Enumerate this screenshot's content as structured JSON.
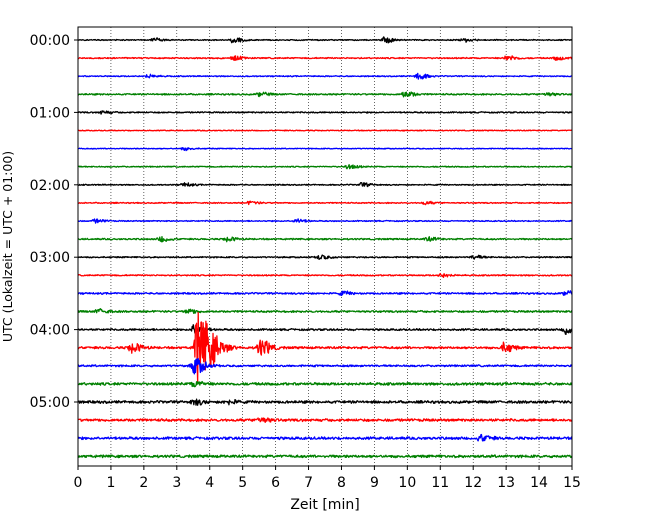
{
  "chart_data": {
    "type": "line",
    "title": "",
    "xlabel": "Zeit  [min]",
    "ylabel": "UTC (Lokalzeit = UTC + 01:00)",
    "xlim": [
      0,
      15
    ],
    "x_ticks": [
      0,
      1,
      2,
      3,
      4,
      5,
      6,
      7,
      8,
      9,
      10,
      11,
      12,
      13,
      14,
      15
    ],
    "x_tick_labels": [
      "0",
      "1",
      "2",
      "3",
      "4",
      "5",
      "6",
      "7",
      "8",
      "9",
      "10",
      "11",
      "12",
      "13",
      "14",
      "15"
    ],
    "y_tick_labels": [
      {
        "label": "00:00",
        "trace_index": 0
      },
      {
        "label": "01:00",
        "trace_index": 4
      },
      {
        "label": "02:00",
        "trace_index": 8
      },
      {
        "label": "03:00",
        "trace_index": 12
      },
      {
        "label": "04:00",
        "trace_index": 16
      },
      {
        "label": "05:00",
        "trace_index": 20
      }
    ],
    "grid": "vertical dotted at each minute",
    "color_cycle": [
      "#000000",
      "#ff0000",
      "#0000ff",
      "#008000"
    ],
    "trace_count": 24,
    "trace_interval_min": 15,
    "traces": [
      {
        "start": "00:00",
        "color": "#000000",
        "amplitude": 0.06,
        "events": [
          {
            "t": 2.3,
            "amp": 0.2
          },
          {
            "t": 4.7,
            "amp": 0.28
          },
          {
            "t": 9.3,
            "amp": 0.3
          },
          {
            "t": 11.7,
            "amp": 0.22
          }
        ]
      },
      {
        "start": "00:15",
        "color": "#ff0000",
        "amplitude": 0.07,
        "events": [
          {
            "t": 4.7,
            "amp": 0.22
          },
          {
            "t": 13.0,
            "amp": 0.28
          },
          {
            "t": 14.5,
            "amp": 0.2
          }
        ]
      },
      {
        "start": "00:30",
        "color": "#0000ff",
        "amplitude": 0.06,
        "events": [
          {
            "t": 2.1,
            "amp": 0.18
          },
          {
            "t": 10.3,
            "amp": 0.34
          }
        ]
      },
      {
        "start": "00:45",
        "color": "#008000",
        "amplitude": 0.08,
        "events": [
          {
            "t": 5.5,
            "amp": 0.2
          },
          {
            "t": 9.9,
            "amp": 0.34
          },
          {
            "t": 14.2,
            "amp": 0.2
          }
        ]
      },
      {
        "start": "01:00",
        "color": "#000000",
        "amplitude": 0.07,
        "events": [
          {
            "t": 0.7,
            "amp": 0.16
          }
        ]
      },
      {
        "start": "01:15",
        "color": "#ff0000",
        "amplitude": 0.05,
        "events": []
      },
      {
        "start": "01:30",
        "color": "#0000ff",
        "amplitude": 0.05,
        "events": [
          {
            "t": 3.2,
            "amp": 0.16
          }
        ]
      },
      {
        "start": "01:45",
        "color": "#008000",
        "amplitude": 0.06,
        "events": [
          {
            "t": 8.2,
            "amp": 0.24
          }
        ]
      },
      {
        "start": "02:00",
        "color": "#000000",
        "amplitude": 0.06,
        "events": [
          {
            "t": 3.2,
            "amp": 0.2
          },
          {
            "t": 8.6,
            "amp": 0.2
          }
        ]
      },
      {
        "start": "02:15",
        "color": "#ff0000",
        "amplitude": 0.06,
        "events": [
          {
            "t": 5.2,
            "amp": 0.16
          },
          {
            "t": 10.5,
            "amp": 0.16
          }
        ]
      },
      {
        "start": "02:30",
        "color": "#0000ff",
        "amplitude": 0.06,
        "events": [
          {
            "t": 0.5,
            "amp": 0.2
          },
          {
            "t": 6.6,
            "amp": 0.22
          }
        ]
      },
      {
        "start": "02:45",
        "color": "#008000",
        "amplitude": 0.08,
        "events": [
          {
            "t": 2.5,
            "amp": 0.3
          },
          {
            "t": 4.5,
            "amp": 0.24
          },
          {
            "t": 10.6,
            "amp": 0.2
          }
        ]
      },
      {
        "start": "03:00",
        "color": "#000000",
        "amplitude": 0.07,
        "events": [
          {
            "t": 7.3,
            "amp": 0.24
          },
          {
            "t": 12.0,
            "amp": 0.2
          }
        ]
      },
      {
        "start": "03:15",
        "color": "#ff0000",
        "amplitude": 0.07,
        "events": [
          {
            "t": 11.0,
            "amp": 0.2
          }
        ]
      },
      {
        "start": "03:30",
        "color": "#0000ff",
        "amplitude": 0.09,
        "events": [
          {
            "t": 8.0,
            "amp": 0.2
          },
          {
            "t": 14.8,
            "amp": 0.24
          }
        ]
      },
      {
        "start": "03:45",
        "color": "#008000",
        "amplitude": 0.1,
        "events": [
          {
            "t": 0.6,
            "amp": 0.24
          },
          {
            "t": 3.3,
            "amp": 0.24
          }
        ]
      },
      {
        "start": "04:00",
        "color": "#000000",
        "amplitude": 0.1,
        "events": [
          {
            "t": 3.5,
            "amp": 0.55
          },
          {
            "t": 14.8,
            "amp": 0.6
          }
        ]
      },
      {
        "start": "04:15",
        "color": "#ff0000",
        "amplitude": 0.12,
        "events": [
          {
            "t": 1.6,
            "amp": 0.55
          },
          {
            "t": 3.6,
            "amp": 3.6
          },
          {
            "t": 5.5,
            "amp": 0.9
          },
          {
            "t": 12.9,
            "amp": 0.5
          }
        ]
      },
      {
        "start": "04:30",
        "color": "#0000ff",
        "amplitude": 0.1,
        "events": [
          {
            "t": 3.5,
            "amp": 0.9
          }
        ]
      },
      {
        "start": "04:45",
        "color": "#008000",
        "amplitude": 0.14,
        "events": [
          {
            "t": 3.5,
            "amp": 0.3
          }
        ]
      },
      {
        "start": "05:00",
        "color": "#000000",
        "amplitude": 0.14,
        "events": [
          {
            "t": 3.5,
            "amp": 0.3
          },
          {
            "t": 4.5,
            "amp": 0.24
          }
        ]
      },
      {
        "start": "05:15",
        "color": "#ff0000",
        "amplitude": 0.14,
        "events": [
          {
            "t": 5.5,
            "amp": 0.3
          }
        ]
      },
      {
        "start": "05:30",
        "color": "#0000ff",
        "amplitude": 0.14,
        "events": [
          {
            "t": 12.2,
            "amp": 0.34
          }
        ]
      },
      {
        "start": "05:45",
        "color": "#008000",
        "amplitude": 0.14,
        "events": []
      }
    ]
  }
}
